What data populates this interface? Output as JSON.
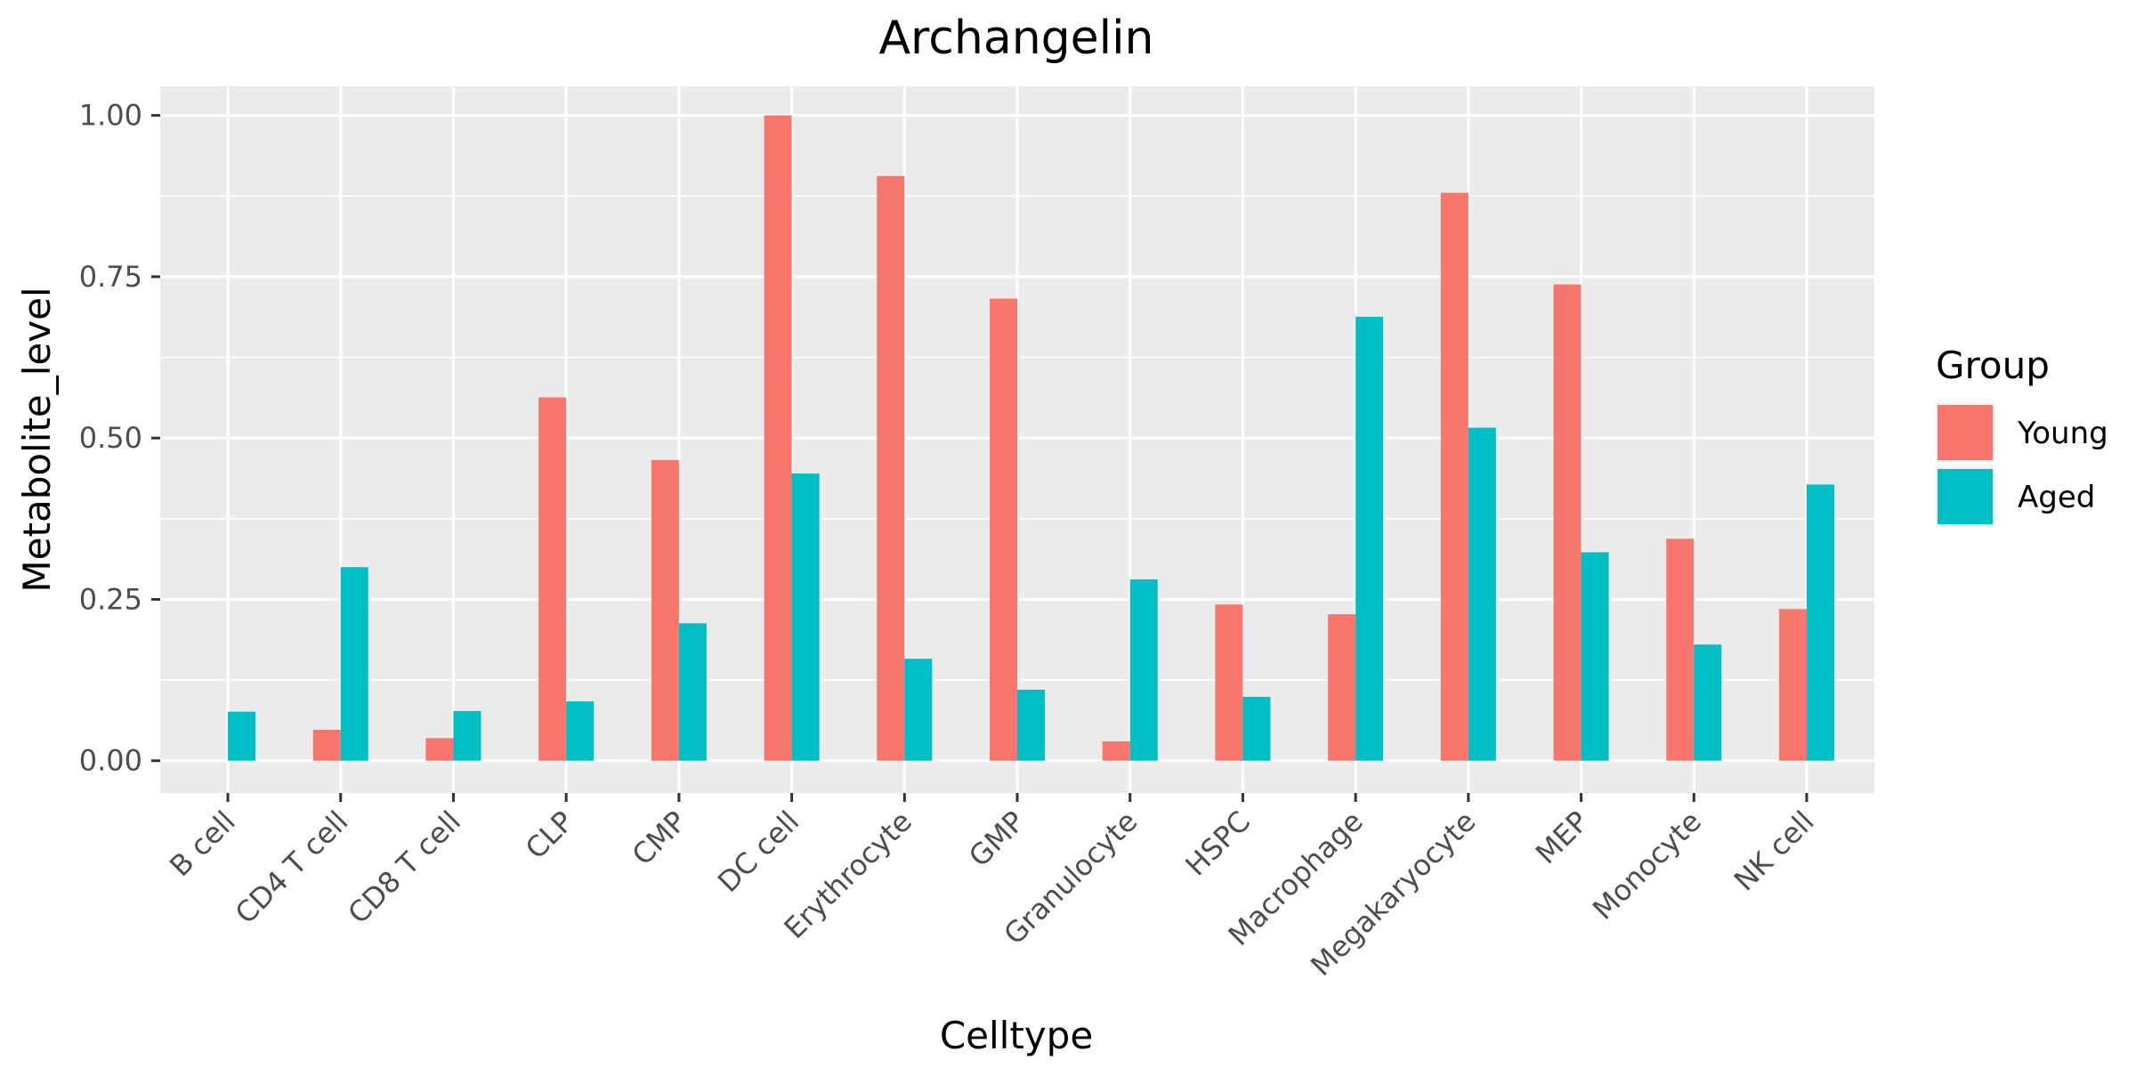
{
  "chart_data": {
    "type": "bar",
    "title": "Archangelin",
    "xlabel": "Celltype",
    "ylabel": "Metabolite_level",
    "ylim": [
      -0.05,
      1.045
    ],
    "yticks": [
      "0.00",
      "0.25",
      "0.50",
      "0.75",
      "1.00"
    ],
    "ytick_values": [
      0,
      0.25,
      0.5,
      0.75,
      1.0
    ],
    "grid": true,
    "legend_title": "Group",
    "legend_position": "right",
    "categories": [
      "B cell",
      "CD4 T cell",
      "CD8 T cell",
      "CLP",
      "CMP",
      "DC cell",
      "Erythrocyte",
      "GMP",
      "Granulocyte",
      "HSPC",
      "Macrophage",
      "Megakaryocyte",
      "MEP",
      "Monocyte",
      "NK cell"
    ],
    "series": [
      {
        "name": "Young",
        "color": "#F8766D",
        "values": [
          0.0,
          0.048,
          0.035,
          0.563,
          0.466,
          1.0,
          0.906,
          0.716,
          0.03,
          0.242,
          0.227,
          0.88,
          0.738,
          0.344,
          0.235
        ]
      },
      {
        "name": "Aged",
        "color": "#00BFC4",
        "values": [
          0.076,
          0.3,
          0.077,
          0.092,
          0.213,
          0.445,
          0.158,
          0.11,
          0.281,
          0.099,
          0.688,
          0.516,
          0.323,
          0.18,
          0.428
        ]
      }
    ]
  }
}
